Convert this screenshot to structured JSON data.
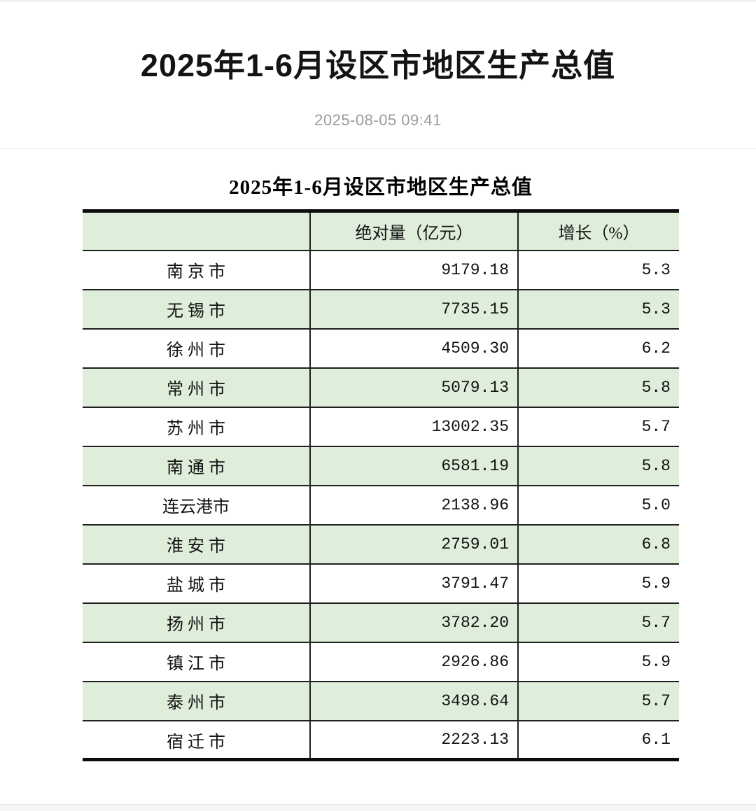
{
  "page": {
    "title": "2025年1-6月设区市地区生产总值",
    "published_at": "2025-08-05 09:41"
  },
  "table": {
    "title": "2025年1-6月设区市地区生产总值",
    "columns": [
      "",
      "绝对量（亿元）",
      "增长（%）"
    ],
    "rows": [
      {
        "city": "南 京 市",
        "absolute": "9179.18",
        "growth": "5.3"
      },
      {
        "city": "无 锡 市",
        "absolute": "7735.15",
        "growth": "5.3"
      },
      {
        "city": "徐 州 市",
        "absolute": "4509.30",
        "growth": "6.2"
      },
      {
        "city": "常 州 市",
        "absolute": "5079.13",
        "growth": "5.8"
      },
      {
        "city": "苏 州 市",
        "absolute": "13002.35",
        "growth": "5.7"
      },
      {
        "city": "南 通 市",
        "absolute": "6581.19",
        "growth": "5.8"
      },
      {
        "city": "连云港市",
        "absolute": "2138.96",
        "growth": "5.0"
      },
      {
        "city": "淮 安 市",
        "absolute": "2759.01",
        "growth": "6.8"
      },
      {
        "city": "盐 城 市",
        "absolute": "3791.47",
        "growth": "5.9"
      },
      {
        "city": "扬 州 市",
        "absolute": "3782.20",
        "growth": "5.7"
      },
      {
        "city": "镇 江 市",
        "absolute": "2926.86",
        "growth": "5.9"
      },
      {
        "city": "泰 州 市",
        "absolute": "3498.64",
        "growth": "5.7"
      },
      {
        "city": "宿 迁 市",
        "absolute": "2223.13",
        "growth": "6.1"
      }
    ]
  },
  "colors": {
    "row_highlight_green": "#dfeeda",
    "table_border_black": "#0d0d0d",
    "date_text_gray": "#9b9b9b",
    "page_background": "#ffffff"
  }
}
